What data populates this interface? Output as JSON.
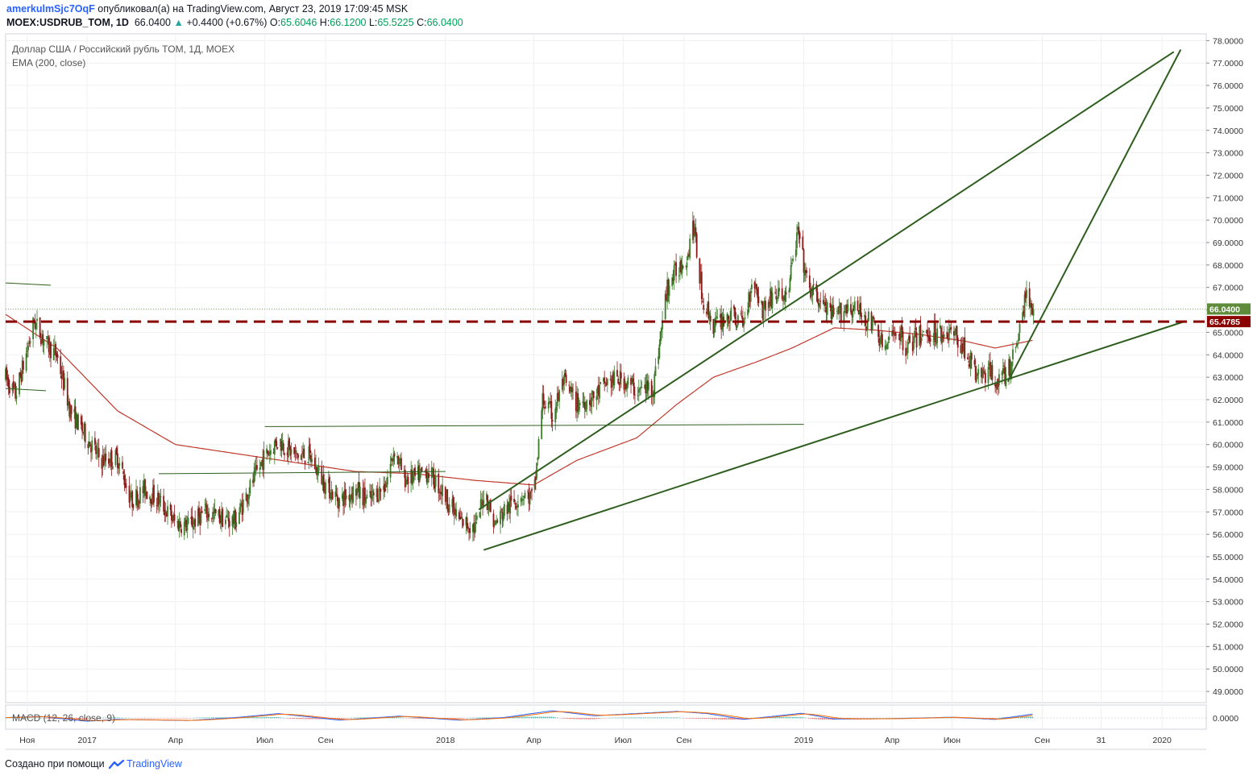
{
  "header": {
    "author": "amerkulmSjc7OqF",
    "published_text": "опубликовал(а) на TradingView.com, Август 23, 2019 17:09:45 MSK",
    "symbol": "MOEX:USDRUB_TOM, 1D",
    "last": "66.0400",
    "change": "+0.4400 (+0.67%)",
    "o_label": "O:",
    "o": "65.6046",
    "h_label": "H:",
    "h": "66.1200",
    "l_label": "L:",
    "l": "65.5225",
    "c_label": "C:",
    "c": "66.0400"
  },
  "legend": {
    "instrument": "Доллар США / Российский рубль TOM, 1Д, MOEX",
    "ema": "EMA (200, close)",
    "macd": "MACD (12, 26, close, 9)"
  },
  "footer": {
    "created": "Создано при помощи",
    "brand": "TradingView"
  },
  "colors": {
    "up": "#3d7a2a",
    "down": "#8b1a1a",
    "ema": "#c0392b",
    "trendline": "#2e5e1e",
    "level": "#8b0000",
    "last_badge": "#5e8c3a"
  },
  "chart_data": {
    "type": "candlestick",
    "title": "Доллар США / Российский рубль TOM, 1Д, MOEX",
    "ylim": [
      48.5,
      78.3
    ],
    "y_ticks": [
      "78.0000",
      "77.0000",
      "76.0000",
      "75.0000",
      "74.0000",
      "73.0000",
      "72.0000",
      "71.0000",
      "70.0000",
      "69.0000",
      "68.0000",
      "67.0000",
      "66.0000",
      "65.0000",
      "64.0000",
      "63.0000",
      "62.0000",
      "61.0000",
      "60.0000",
      "59.0000",
      "58.0000",
      "57.0000",
      "56.0000",
      "55.0000",
      "54.0000",
      "53.0000",
      "52.0000",
      "51.0000",
      "50.0000",
      "49.0000"
    ],
    "x_ticks": [
      {
        "label": "Ноя",
        "date": "2016-11-01"
      },
      {
        "label": "2017",
        "date": "2017-01-01"
      },
      {
        "label": "Апр",
        "date": "2017-04-01"
      },
      {
        "label": "Июл",
        "date": "2017-07-01"
      },
      {
        "label": "Сен",
        "date": "2017-09-01"
      },
      {
        "label": "2018",
        "date": "2018-01-01"
      },
      {
        "label": "Апр",
        "date": "2018-04-01"
      },
      {
        "label": "Июл",
        "date": "2018-07-01"
      },
      {
        "label": "Сен",
        "date": "2018-09-01"
      },
      {
        "label": "2019",
        "date": "2019-01-01"
      },
      {
        "label": "Апр",
        "date": "2019-04-01"
      },
      {
        "label": "Июн",
        "date": "2019-06-01"
      },
      {
        "label": "Сен",
        "date": "2019-09-01"
      },
      {
        "label": "31",
        "date": "2019-10-31"
      },
      {
        "label": "2020",
        "date": "2020-01-01"
      }
    ],
    "price_path": [
      [
        "2016-10-10",
        63.0
      ],
      [
        "2016-10-20",
        62.2
      ],
      [
        "2016-11-01",
        64.2
      ],
      [
        "2016-11-08",
        65.5
      ],
      [
        "2016-11-20",
        64.5
      ],
      [
        "2016-12-01",
        64.0
      ],
      [
        "2016-12-15",
        61.5
      ],
      [
        "2017-01-01",
        60.3
      ],
      [
        "2017-01-15",
        59.3
      ],
      [
        "2017-02-01",
        59.4
      ],
      [
        "2017-02-15",
        57.5
      ],
      [
        "2017-03-01",
        58.0
      ],
      [
        "2017-03-15",
        57.5
      ],
      [
        "2017-04-01",
        56.5
      ],
      [
        "2017-04-15",
        56.4
      ],
      [
        "2017-05-01",
        57.0
      ],
      [
        "2017-05-20",
        56.7
      ],
      [
        "2017-06-01",
        56.6
      ],
      [
        "2017-06-15",
        58.0
      ],
      [
        "2017-07-01",
        59.5
      ],
      [
        "2017-07-15",
        60.2
      ],
      [
        "2017-08-01",
        59.5
      ],
      [
        "2017-08-15",
        59.5
      ],
      [
        "2017-09-01",
        58.2
      ],
      [
        "2017-09-15",
        57.5
      ],
      [
        "2017-10-01",
        58.0
      ],
      [
        "2017-10-15",
        57.5
      ],
      [
        "2017-11-01",
        58.2
      ],
      [
        "2017-11-10",
        59.8
      ],
      [
        "2017-11-20",
        58.5
      ],
      [
        "2017-12-01",
        58.5
      ],
      [
        "2017-12-15",
        58.8
      ],
      [
        "2018-01-01",
        57.7
      ],
      [
        "2018-01-15",
        56.6
      ],
      [
        "2018-02-01",
        56.3
      ],
      [
        "2018-02-10",
        58.0
      ],
      [
        "2018-02-20",
        56.4
      ],
      [
        "2018-03-01",
        57.0
      ],
      [
        "2018-03-20",
        57.8
      ],
      [
        "2018-04-01",
        57.6
      ],
      [
        "2018-04-10",
        62.0
      ],
      [
        "2018-04-20",
        61.3
      ],
      [
        "2018-05-01",
        62.8
      ],
      [
        "2018-05-15",
        61.8
      ],
      [
        "2018-06-01",
        62.1
      ],
      [
        "2018-06-15",
        62.8
      ],
      [
        "2018-07-01",
        62.9
      ],
      [
        "2018-07-15",
        62.4
      ],
      [
        "2018-08-01",
        62.6
      ],
      [
        "2018-08-10",
        65.5
      ],
      [
        "2018-08-15",
        67.0
      ],
      [
        "2018-08-25",
        67.8
      ],
      [
        "2018-09-05",
        68.5
      ],
      [
        "2018-09-10",
        70.0
      ],
      [
        "2018-09-20",
        66.5
      ],
      [
        "2018-10-01",
        65.3
      ],
      [
        "2018-10-15",
        65.7
      ],
      [
        "2018-10-25",
        65.6
      ],
      [
        "2018-11-01",
        65.4
      ],
      [
        "2018-11-10",
        67.5
      ],
      [
        "2018-11-20",
        66.0
      ],
      [
        "2018-12-01",
        66.7
      ],
      [
        "2018-12-15",
        66.6
      ],
      [
        "2018-12-26",
        69.5
      ],
      [
        "2019-01-05",
        67.0
      ],
      [
        "2019-01-15",
        66.5
      ],
      [
        "2019-02-01",
        65.6
      ],
      [
        "2019-02-15",
        66.2
      ],
      [
        "2019-03-01",
        65.8
      ],
      [
        "2019-03-15",
        65.2
      ],
      [
        "2019-03-25",
        64.2
      ],
      [
        "2019-04-05",
        65.2
      ],
      [
        "2019-04-15",
        64.4
      ],
      [
        "2019-05-01",
        64.9
      ],
      [
        "2019-05-15",
        65.0
      ],
      [
        "2019-06-01",
        65.0
      ],
      [
        "2019-06-15",
        64.2
      ],
      [
        "2019-06-25",
        63.1
      ],
      [
        "2019-07-10",
        63.2
      ],
      [
        "2019-07-20",
        62.8
      ],
      [
        "2019-08-01",
        63.6
      ],
      [
        "2019-08-10",
        65.5
      ],
      [
        "2019-08-15",
        66.6
      ],
      [
        "2019-08-23",
        66.04
      ]
    ],
    "ema_path": [
      [
        "2016-10-10",
        65.8
      ],
      [
        "2016-12-01",
        64.3
      ],
      [
        "2017-02-01",
        61.5
      ],
      [
        "2017-04-01",
        60.0
      ],
      [
        "2017-06-01",
        59.6
      ],
      [
        "2017-08-01",
        59.2
      ],
      [
        "2017-10-01",
        58.8
      ],
      [
        "2017-12-01",
        58.7
      ],
      [
        "2018-02-01",
        58.4
      ],
      [
        "2018-04-01",
        58.2
      ],
      [
        "2018-05-15",
        59.3
      ],
      [
        "2018-07-15",
        60.3
      ],
      [
        "2018-08-25",
        61.8
      ],
      [
        "2018-10-01",
        63.0
      ],
      [
        "2018-11-15",
        63.7
      ],
      [
        "2018-12-20",
        64.3
      ],
      [
        "2019-02-01",
        65.2
      ],
      [
        "2019-03-15",
        65.1
      ],
      [
        "2019-05-01",
        64.9
      ],
      [
        "2019-06-15",
        64.6
      ],
      [
        "2019-07-15",
        64.3
      ],
      [
        "2019-08-23",
        64.65
      ]
    ],
    "drawings": {
      "trendlines": [
        {
          "from": [
            "2018-02-09",
            55.3
          ],
          "to": [
            "2020-01-25",
            65.5
          ]
        },
        {
          "from": [
            "2018-02-04",
            57.1
          ],
          "to": [
            "2020-01-13",
            77.5
          ]
        },
        {
          "from": [
            "2019-07-28",
            62.8
          ],
          "to": [
            "2020-01-20",
            77.6
          ]
        },
        {
          "from": [
            "2017-07-01",
            60.8
          ],
          "to": [
            "2019-01-01",
            60.9
          ]
        },
        {
          "from": [
            "2017-03-15",
            58.7
          ],
          "to": [
            "2018-01-01",
            58.8
          ]
        },
        {
          "from": [
            "2016-10-10",
            67.2
          ],
          "to": [
            "2016-11-25",
            67.1
          ]
        },
        {
          "from": [
            "2016-10-10",
            62.5
          ],
          "to": [
            "2016-11-20",
            62.4
          ]
        }
      ],
      "horizontal_level": 65.4785,
      "last_price": 66.04
    },
    "price_labels": {
      "last": "66.0400",
      "level": "65.4785"
    },
    "macd": {
      "label": "MACD (12, 26, close, 9)",
      "y_ticks": [
        "0.0000"
      ],
      "macd_path": [
        [
          "2016-10-10",
          0.1
        ],
        [
          "2016-11-15",
          0.4
        ],
        [
          "2017-01-01",
          -0.9
        ],
        [
          "2017-02-01",
          -0.4
        ],
        [
          "2017-04-15",
          -0.7
        ],
        [
          "2017-06-01",
          0.1
        ],
        [
          "2017-07-15",
          1.2
        ],
        [
          "2017-09-15",
          -0.6
        ],
        [
          "2017-11-15",
          0.5
        ],
        [
          "2018-01-15",
          -0.6
        ],
        [
          "2018-03-01",
          0.1
        ],
        [
          "2018-04-20",
          2.0
        ],
        [
          "2018-06-01",
          0.6
        ],
        [
          "2018-08-25",
          1.8
        ],
        [
          "2018-09-25",
          1.2
        ],
        [
          "2018-11-01",
          -0.4
        ],
        [
          "2018-12-30",
          1.3
        ],
        [
          "2019-02-01",
          -0.3
        ],
        [
          "2019-04-01",
          -0.2
        ],
        [
          "2019-06-01",
          0.2
        ],
        [
          "2019-07-15",
          -0.4
        ],
        [
          "2019-08-23",
          1.1
        ]
      ]
    }
  }
}
